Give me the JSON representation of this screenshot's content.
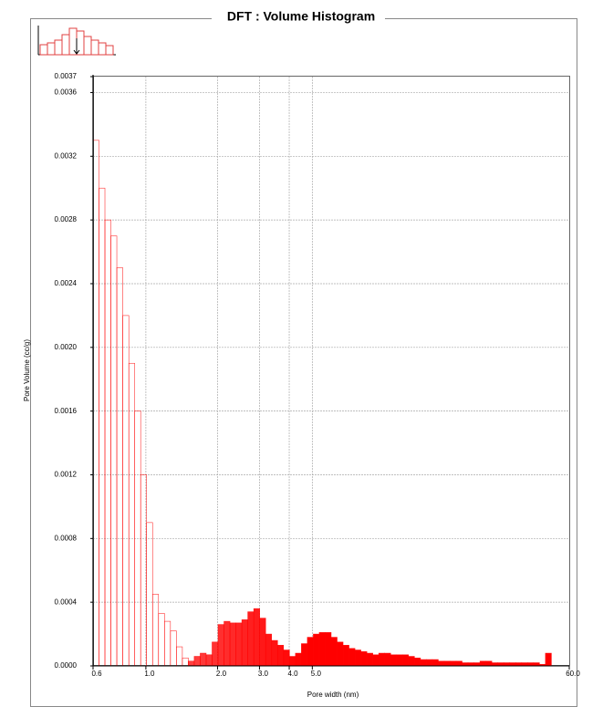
{
  "chart_data": {
    "type": "histogram",
    "title": "DFT :   Volume Histogram",
    "xlabel": "Pore width (nm)",
    "ylabel": "Pore Volume (cc/g)",
    "xscale": "log",
    "xlim": [
      0.6,
      60
    ],
    "ylim": [
      0,
      0.0037
    ],
    "xticks": [
      0.6,
      {
        "value": 1,
        "label": "1.0"
      },
      {
        "value": 2,
        "label": "2.0"
      },
      {
        "value": 3,
        "label": "3.0"
      },
      {
        "value": 4,
        "label": "4.0"
      },
      {
        "value": 5,
        "label": "5.0"
      },
      {
        "value": 60,
        "label": "60.0"
      }
    ],
    "yticks": [
      {
        "value": 0,
        "label": "0.0000"
      },
      0.0004,
      0.0008,
      0.0012,
      0.0016,
      {
        "value": 0.002,
        "label": "0.0020"
      },
      0.0024,
      0.0028,
      0.0032,
      0.0036,
      0.0037
    ],
    "grid": true,
    "color": "#ff0000",
    "bins": [
      0.6,
      0.636,
      0.673,
      0.713,
      0.755,
      0.8,
      0.848,
      0.898,
      0.951,
      1.007,
      1.067,
      1.13,
      1.197,
      1.268,
      1.343,
      1.423,
      1.507,
      1.596,
      1.691,
      1.791,
      1.897,
      2.01,
      2.129,
      2.255,
      2.389,
      2.53,
      2.68,
      2.839,
      3.007,
      3.185,
      3.374,
      3.574,
      3.786,
      4.01,
      4.248,
      4.499,
      4.766,
      5.048,
      5.348,
      5.664,
      6.0,
      6.356,
      6.732,
      7.131,
      7.554,
      8.001,
      8.476,
      8.978,
      9.51,
      10.07,
      10.67,
      11.3,
      11.97,
      12.68,
      13.43,
      14.23,
      15.07,
      15.96,
      16.91,
      17.91,
      18.97,
      20.1,
      21.29,
      22.55,
      23.89,
      25.3,
      26.8,
      28.39,
      30.07,
      31.85,
      33.74,
      35.74,
      37.86,
      40.1,
      42.48,
      44.99,
      47.66,
      50.48,
      53.48,
      56.64,
      60.0
    ],
    "values": [
      0.0033,
      0.003,
      0.0028,
      0.0027,
      0.0025,
      0.0022,
      0.0019,
      0.0016,
      0.0012,
      0.0009,
      0.00045,
      0.00033,
      0.00028,
      0.00022,
      0.00012,
      5e-05,
      3e-05,
      6e-05,
      8e-05,
      7e-05,
      0.00015,
      0.00026,
      0.00028,
      0.00027,
      0.00027,
      0.00029,
      0.00034,
      0.00036,
      0.0003,
      0.0002,
      0.00016,
      0.00013,
      0.0001,
      6e-05,
      8e-05,
      0.00014,
      0.00018,
      0.0002,
      0.00021,
      0.00021,
      0.00018,
      0.00015,
      0.00013,
      0.00011,
      0.0001,
      9e-05,
      8e-05,
      7e-05,
      8e-05,
      8e-05,
      7e-05,
      7e-05,
      7e-05,
      6e-05,
      5e-05,
      4e-05,
      4e-05,
      4e-05,
      3e-05,
      3e-05,
      3e-05,
      3e-05,
      2e-05,
      2e-05,
      2e-05,
      3e-05,
      3e-05,
      2e-05,
      2e-05,
      2e-05,
      2e-05,
      2e-05,
      2e-05,
      2e-05,
      2e-05,
      1e-05,
      8e-05,
      0,
      0,
      0
    ]
  }
}
